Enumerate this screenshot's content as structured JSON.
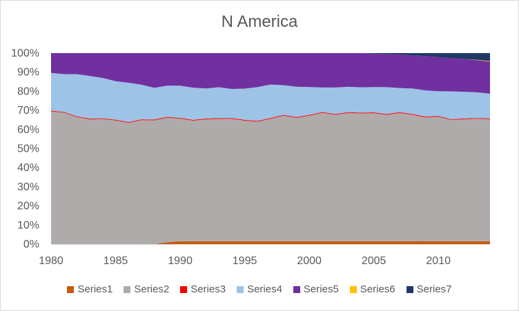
{
  "chart_data": {
    "type": "area",
    "stacked_percent": true,
    "title": "N America",
    "xlabel": "",
    "ylabel": "",
    "x": [
      1980,
      1981,
      1982,
      1983,
      1984,
      1985,
      1986,
      1987,
      1988,
      1989,
      1990,
      1991,
      1992,
      1993,
      1994,
      1995,
      1996,
      1997,
      1998,
      1999,
      2000,
      2001,
      2002,
      2003,
      2004,
      2005,
      2006,
      2007,
      2008,
      2009,
      2010,
      2011,
      2012,
      2013,
      2014
    ],
    "x_ticks": [
      1980,
      1985,
      1990,
      1995,
      2000,
      2005,
      2010
    ],
    "y_ticks": [
      "0%",
      "10%",
      "20%",
      "30%",
      "40%",
      "50%",
      "60%",
      "70%",
      "80%",
      "90%",
      "100%"
    ],
    "ylim": [
      0,
      100
    ],
    "legend_position": "bottom",
    "grid": false,
    "series": [
      {
        "name": "Series1",
        "color": "#c55a11",
        "values": [
          0,
          0,
          0,
          0,
          0,
          0,
          0,
          0,
          0,
          1,
          1.5,
          1.5,
          1.5,
          1.5,
          1.5,
          1.5,
          1.5,
          1.5,
          1.5,
          1.5,
          1.5,
          1.5,
          1.5,
          1.5,
          1.5,
          1.5,
          1.5,
          1.5,
          1.5,
          1.5,
          1.5,
          1.5,
          1.5,
          1.5,
          1.5
        ]
      },
      {
        "name": "Series2",
        "color": "#afabab",
        "values": [
          69.5,
          68.8,
          66.5,
          65.3,
          65.5,
          64.7,
          63.5,
          64.9,
          64.8,
          65.2,
          63.9,
          62.8,
          63.5,
          63.7,
          63.8,
          62.8,
          62.3,
          63.8,
          65.4,
          64.3,
          65.4,
          66.9,
          65.8,
          66.7,
          66.5,
          66.7,
          65.8,
          66.9,
          65.6,
          64.3,
          65.0,
          63.4,
          63.7,
          63.7,
          63.7
        ]
      },
      {
        "name": "Series3",
        "color": "#ff0000",
        "values": [
          0.4,
          0.4,
          0.4,
          0.4,
          0.4,
          0.4,
          0.4,
          0.4,
          0.4,
          0.4,
          0.4,
          0.4,
          0.4,
          0.4,
          0.4,
          0.4,
          0.4,
          0.4,
          0.4,
          0.4,
          0.4,
          0.4,
          0.4,
          0.4,
          0.4,
          0.4,
          0.4,
          0.4,
          0.4,
          0.4,
          0.4,
          0.4,
          0.4,
          0.4,
          0.4
        ]
      },
      {
        "name": "Series4",
        "color": "#9dc3e6",
        "values": [
          19.7,
          19.8,
          22.1,
          22.3,
          21.1,
          20.2,
          20.6,
          18.2,
          16.6,
          16.4,
          16.8,
          16.8,
          15.7,
          16.1,
          15.1,
          16.3,
          17.6,
          17.4,
          15.5,
          15.8,
          14.5,
          12.8,
          13.8,
          13.2,
          13.2,
          13.2,
          14.0,
          12.6,
          13.2,
          13.6,
          12.9,
          14.6,
          13.9,
          13.4,
          12.9
        ]
      },
      {
        "name": "Series5",
        "color": "#7030a0",
        "values": [
          10.4,
          11.0,
          11.0,
          12.0,
          13.0,
          14.7,
          15.5,
          16.5,
          18.2,
          17.0,
          17.0,
          18.0,
          18.4,
          17.8,
          18.7,
          18.5,
          17.7,
          16.4,
          16.7,
          17.5,
          17.7,
          17.9,
          17.9,
          17.5,
          17.8,
          17.4,
          17.1,
          17.4,
          17.2,
          17.9,
          17.8,
          17.4,
          17.2,
          16.7,
          16.8
        ]
      },
      {
        "name": "Series6",
        "color": "#ffc000",
        "values": [
          0,
          0,
          0,
          0,
          0,
          0,
          0,
          0,
          0,
          0,
          0,
          0,
          0,
          0,
          0,
          0,
          0,
          0,
          0,
          0,
          0,
          0,
          0,
          0,
          0,
          0,
          0,
          0,
          0,
          0,
          0,
          0,
          0,
          0.2,
          0.3
        ]
      },
      {
        "name": "Series7",
        "color": "#203864",
        "values": [
          0,
          0,
          0,
          0,
          0,
          0,
          0,
          0,
          0,
          0,
          0,
          0,
          0,
          0,
          0,
          0,
          0,
          0,
          0,
          0,
          0,
          0,
          0,
          0,
          0,
          0.3,
          0.6,
          0.8,
          1.2,
          1.5,
          2.1,
          2.6,
          3.0,
          3.5,
          4.1
        ]
      }
    ]
  }
}
